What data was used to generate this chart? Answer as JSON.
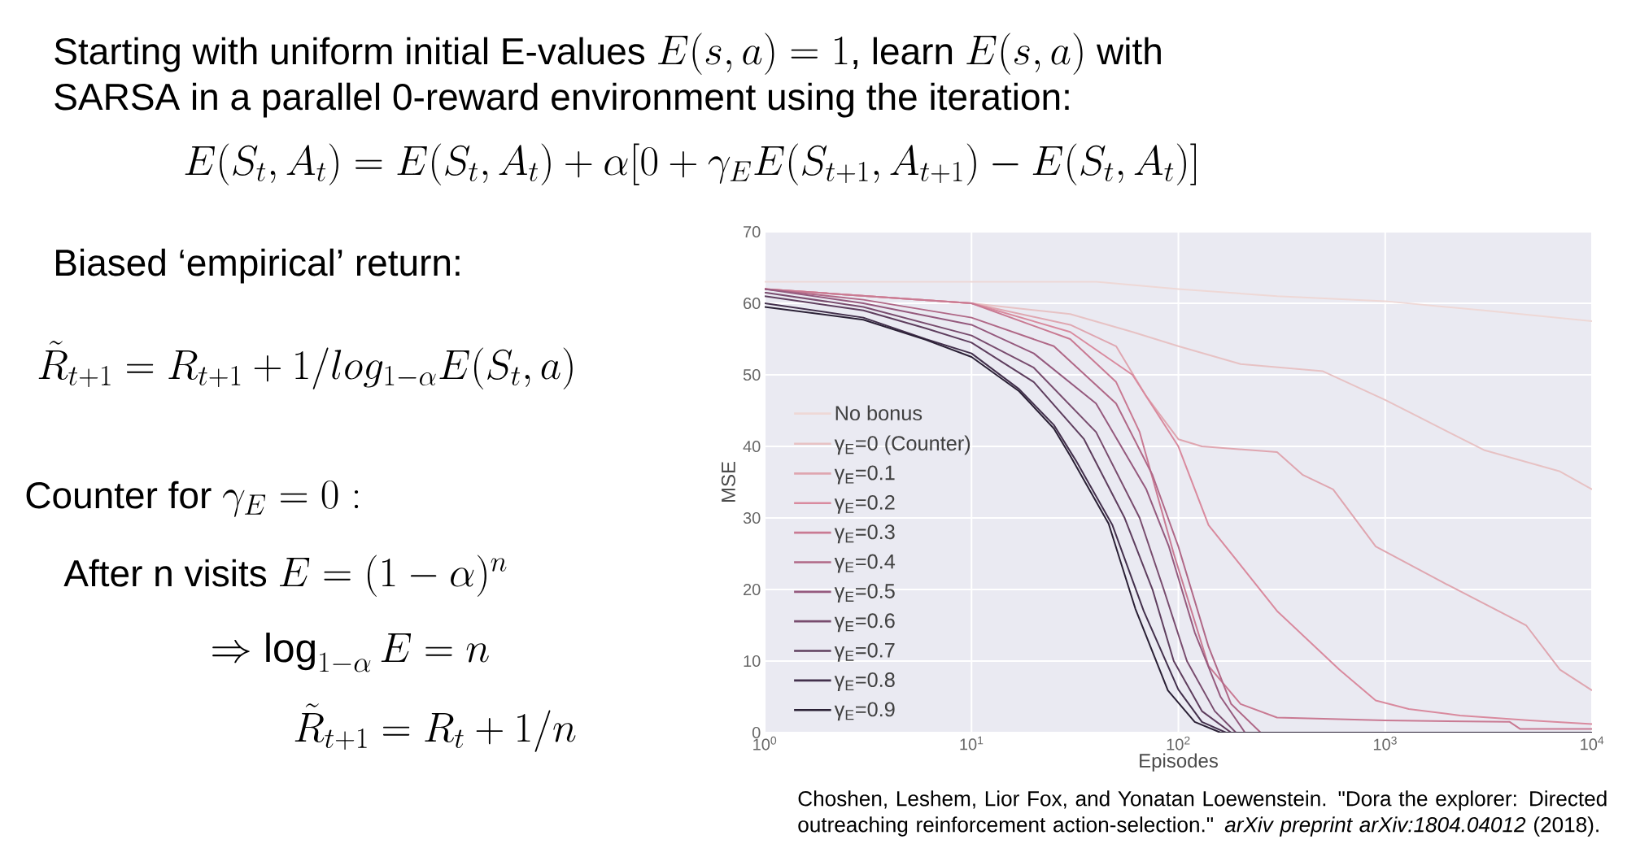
{
  "chart_data": {
    "type": "line",
    "xlabel": "Episodes",
    "ylabel": "MSE",
    "log": "x",
    "grid": true,
    "legend": "bottom left",
    "xlim": [
      1,
      10000
    ],
    "ylim": [
      0,
      70
    ],
    "xticks": [
      {
        "value": 1,
        "label": "10$^{0}$"
      },
      {
        "value": 10,
        "label": "10$^{1}$"
      },
      {
        "value": 100,
        "label": "10$^{2}$"
      },
      {
        "value": 1000,
        "label": "10$^{3}$"
      },
      {
        "value": 10000,
        "label": "10$^{4}$"
      }
    ],
    "yticks": [
      0,
      10,
      20,
      30,
      40,
      50,
      60,
      70
    ],
    "series": [
      {
        "name": "No bonus",
        "color": "#eed8d6",
        "x": [
          1,
          10,
          40,
          100,
          300,
          1000,
          3000,
          10000
        ],
        "values": [
          63,
          63,
          63,
          62,
          61,
          60.3,
          59,
          57.5
        ]
      },
      {
        "name": "γ$_{E}$=0 (Counter)",
        "color": "#e7c2c4",
        "x": [
          1,
          10,
          30,
          60,
          100,
          200,
          500,
          1000,
          3000,
          7000,
          10000
        ],
        "values": [
          62,
          60,
          58.5,
          56,
          54,
          51.5,
          50.5,
          46.5,
          39.5,
          36.5,
          34
        ]
      },
      {
        "name": "γ$_{E}$=0.1",
        "color": "#dfa6b0",
        "x": [
          1,
          10,
          30,
          50,
          70,
          100,
          130,
          300,
          400,
          560,
          900,
          1900,
          4800,
          7000,
          10000
        ],
        "values": [
          62,
          60,
          57,
          54,
          47,
          41,
          40,
          39.2,
          36,
          34,
          26,
          21,
          15,
          8.8,
          5.9
        ]
      },
      {
        "name": "γ$_{E}$=0.2",
        "color": "#d98a9e",
        "x": [
          1,
          10,
          30,
          60,
          100,
          140,
          300,
          600,
          900,
          1300,
          2300,
          5000,
          10000
        ],
        "values": [
          62,
          60,
          56,
          50,
          40,
          29,
          17,
          8.8,
          4.5,
          3.3,
          2.4,
          1.7,
          1.2
        ]
      },
      {
        "name": "γ$_{E}$=0.3",
        "color": "#c97a93",
        "x": [
          1,
          10,
          30,
          50,
          65,
          95,
          140,
          200,
          300,
          1000,
          4000,
          4500,
          10000
        ],
        "values": [
          62,
          60,
          55,
          49,
          42,
          25,
          9.3,
          4,
          2.1,
          1.7,
          1.5,
          0.5,
          0.5
        ]
      },
      {
        "name": "γ$_{E}$=0.4",
        "color": "#b06887",
        "x": [
          1,
          3,
          10,
          25,
          50,
          75,
          100,
          140,
          180,
          250,
          10000
        ],
        "values": [
          62,
          60.5,
          58,
          54,
          46,
          36,
          26,
          12,
          4,
          0,
          0
        ]
      },
      {
        "name": "γ$_{E}$=0.5",
        "color": "#955a7e",
        "x": [
          1,
          3,
          10,
          20,
          40,
          70,
          90,
          120,
          160,
          210,
          10000
        ],
        "values": [
          62,
          60,
          57,
          53,
          46,
          34,
          26,
          14,
          5,
          0,
          0
        ]
      },
      {
        "name": "γ$_{E}$=0.6",
        "color": "#784c6e",
        "x": [
          1,
          3,
          10,
          20,
          40,
          65,
          85,
          110,
          150,
          190,
          10000
        ],
        "values": [
          61.5,
          59.5,
          55.5,
          51,
          42,
          30,
          20,
          10,
          3,
          0,
          0
        ]
      },
      {
        "name": "γ$_{E}$=0.7",
        "color": "#5e3e5e",
        "x": [
          1,
          3,
          6,
          10,
          20,
          35,
          55,
          75,
          95,
          130,
          180,
          10000
        ],
        "values": [
          61,
          59,
          56.5,
          54.5,
          49,
          41,
          30,
          20,
          10,
          3,
          0,
          0
        ]
      },
      {
        "name": "γ$_{E}$=0.8",
        "color": "#43304c",
        "x": [
          1,
          3,
          6,
          10,
          17,
          25,
          32,
          48,
          68,
          100,
          130,
          170,
          10000
        ],
        "values": [
          60,
          58,
          55,
          53,
          48,
          43,
          38,
          29,
          17,
          6,
          1.5,
          0,
          0
        ]
      },
      {
        "name": "γ$_{E}$=0.9",
        "color": "#2a2035",
        "x": [
          1,
          3,
          6,
          10,
          17,
          25,
          30,
          46,
          62,
          89,
          120,
          160,
          10000
        ],
        "values": [
          59.5,
          57.7,
          54.9,
          52.5,
          47.7,
          42.5,
          38.7,
          29.2,
          17.3,
          5.9,
          1.5,
          0,
          0
        ]
      }
    ],
    "annotations": [
      "Starting with uniform initial E-values",
      "E(s,a)=1",
      ", learn",
      "E(s,a)",
      "with",
      "SARSA in a parallel 0-reward environment using the iteration:",
      "E(S_t,A_t)=E(S_t,A_t)+\\alpha[0+\\gamma_E E(S_{t+1},A_{t+1})-E(S_t,A_t)]",
      "Biased ‘empirical’ return:",
      "\\tilde{R}_{t+1}=R_{t+1}+1/log_{1-\\alpha}E(S_t,a)",
      "Counter for",
      "\\gamma_E=0:",
      "After n visits",
      "E=(1-\\alpha)^n",
      "\\Rightarrow \\log_{1-\\alpha}E=n",
      "\\tilde{R}_{t+1}=R_t+1/n",
      "Choshen, Leshem, Lior Fox, and Yonatan Loewenstein. \"Dora the explorer: Directed outreaching reinforcement action-selection.\" *arXiv preprint arXiv:1804.04012* (2018)."
    ]
  }
}
